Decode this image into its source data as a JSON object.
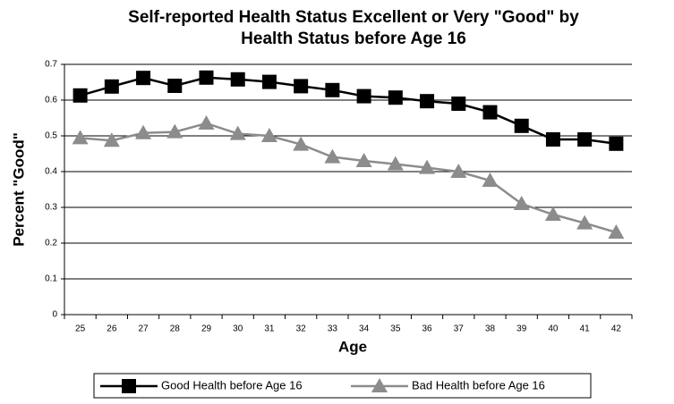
{
  "chart_data": {
    "type": "line",
    "title": [
      "Self-reported Health Status Excellent or Very \"Good\" by",
      "Health Status before Age 16"
    ],
    "x_label": "Age",
    "y_label": "Percent \"Good\"",
    "categories": [
      "25",
      "26",
      "27",
      "28",
      "29",
      "30",
      "31",
      "32",
      "33",
      "34",
      "35",
      "36",
      "37",
      "38",
      "39",
      "40",
      "41",
      "42"
    ],
    "series": [
      {
        "name": "Good Health before Age 16",
        "color": "#000000",
        "marker": "square",
        "values": [
          0.613,
          0.638,
          0.662,
          0.64,
          0.663,
          0.658,
          0.651,
          0.639,
          0.628,
          0.611,
          0.607,
          0.597,
          0.59,
          0.566,
          0.528,
          0.49,
          0.49,
          0.478
        ]
      },
      {
        "name": "Bad Health before Age 16",
        "color": "#8c8c8c",
        "marker": "triangle",
        "values": [
          0.494,
          0.487,
          0.508,
          0.511,
          0.535,
          0.506,
          0.5,
          0.476,
          0.441,
          0.43,
          0.421,
          0.411,
          0.4,
          0.375,
          0.31,
          0.28,
          0.256,
          0.23
        ]
      }
    ],
    "ylim": [
      0,
      0.7
    ],
    "yticks": [
      0,
      0.1,
      0.2,
      0.3,
      0.4,
      0.5,
      0.6,
      0.7
    ],
    "grid": true,
    "legend": "bottom"
  }
}
